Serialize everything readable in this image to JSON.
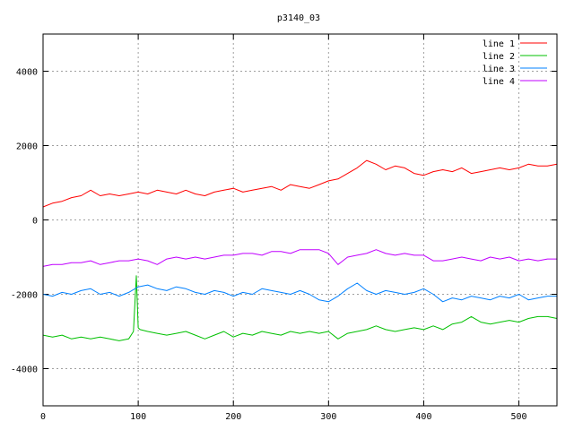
{
  "chart_data": {
    "type": "line",
    "title": "p3140_03",
    "xlabel": "",
    "ylabel": "",
    "xlim": [
      0,
      540
    ],
    "ylim": [
      -5000,
      5000
    ],
    "xticks": [
      0,
      100,
      200,
      300,
      400,
      500
    ],
    "yticks": [
      -4000,
      -2000,
      0,
      2000,
      4000
    ],
    "grid": true,
    "legend_position": "top-right",
    "colors": [
      "#ff0000",
      "#00c000",
      "#0080ff",
      "#c000ff"
    ],
    "series": [
      {
        "name": "line 1",
        "x": [
          0,
          10,
          20,
          30,
          40,
          50,
          60,
          70,
          80,
          90,
          100,
          110,
          120,
          130,
          140,
          150,
          160,
          170,
          180,
          190,
          200,
          210,
          220,
          230,
          240,
          250,
          260,
          270,
          280,
          290,
          300,
          310,
          320,
          330,
          340,
          350,
          360,
          370,
          380,
          390,
          400,
          410,
          420,
          430,
          440,
          450,
          460,
          470,
          480,
          490,
          500,
          510,
          520,
          530,
          540
        ],
        "y": [
          350,
          450,
          500,
          600,
          650,
          800,
          650,
          700,
          650,
          700,
          750,
          700,
          800,
          750,
          700,
          800,
          700,
          650,
          750,
          800,
          850,
          750,
          800,
          850,
          900,
          800,
          950,
          900,
          850,
          950,
          1050,
          1100,
          1250,
          1400,
          1600,
          1500,
          1350,
          1450,
          1400,
          1250,
          1200,
          1300,
          1350,
          1300,
          1400,
          1250,
          1300,
          1350,
          1400,
          1350,
          1400,
          1500,
          1450,
          1450,
          1500
        ]
      },
      {
        "name": "line 2",
        "x": [
          0,
          10,
          20,
          30,
          40,
          50,
          60,
          70,
          80,
          90,
          95,
          98,
          100,
          102,
          110,
          120,
          130,
          140,
          150,
          160,
          170,
          180,
          190,
          200,
          210,
          220,
          230,
          240,
          250,
          260,
          270,
          280,
          290,
          300,
          310,
          320,
          330,
          340,
          350,
          360,
          370,
          380,
          390,
          400,
          410,
          420,
          430,
          440,
          450,
          460,
          470,
          480,
          490,
          500,
          510,
          520,
          530,
          540
        ],
        "y": [
          -3100,
          -3150,
          -3100,
          -3200,
          -3150,
          -3200,
          -3150,
          -3200,
          -3250,
          -3200,
          -3000,
          -1500,
          -2900,
          -2950,
          -3000,
          -3050,
          -3100,
          -3050,
          -3000,
          -3100,
          -3200,
          -3100,
          -3000,
          -3150,
          -3050,
          -3100,
          -3000,
          -3050,
          -3100,
          -3000,
          -3050,
          -3000,
          -3050,
          -3000,
          -3200,
          -3050,
          -3000,
          -2950,
          -2850,
          -2950,
          -3000,
          -2950,
          -2900,
          -2950,
          -2850,
          -2950,
          -2800,
          -2750,
          -2600,
          -2750,
          -2800,
          -2750,
          -2700,
          -2750,
          -2650,
          -2600,
          -2600,
          -2650
        ]
      },
      {
        "name": "line 3",
        "x": [
          0,
          10,
          20,
          30,
          40,
          50,
          60,
          70,
          80,
          90,
          100,
          110,
          120,
          130,
          140,
          150,
          160,
          170,
          180,
          190,
          200,
          210,
          220,
          230,
          240,
          250,
          260,
          270,
          280,
          290,
          300,
          310,
          320,
          330,
          340,
          350,
          360,
          370,
          380,
          390,
          400,
          410,
          420,
          430,
          440,
          450,
          460,
          470,
          480,
          490,
          500,
          510,
          520,
          530,
          540
        ],
        "y": [
          -2000,
          -2050,
          -1950,
          -2000,
          -1900,
          -1850,
          -2000,
          -1950,
          -2050,
          -1950,
          -1800,
          -1750,
          -1850,
          -1900,
          -1800,
          -1850,
          -1950,
          -2000,
          -1900,
          -1950,
          -2050,
          -1950,
          -2000,
          -1850,
          -1900,
          -1950,
          -2000,
          -1900,
          -2000,
          -2150,
          -2200,
          -2050,
          -1850,
          -1700,
          -1900,
          -2000,
          -1900,
          -1950,
          -2000,
          -1950,
          -1850,
          -2000,
          -2200,
          -2100,
          -2150,
          -2050,
          -2100,
          -2150,
          -2050,
          -2100,
          -2000,
          -2150,
          -2100,
          -2050,
          -2050
        ]
      },
      {
        "name": "line 4",
        "x": [
          0,
          10,
          20,
          30,
          40,
          50,
          60,
          70,
          80,
          90,
          100,
          110,
          120,
          130,
          140,
          150,
          160,
          170,
          180,
          190,
          200,
          210,
          220,
          230,
          240,
          250,
          260,
          270,
          280,
          290,
          300,
          310,
          320,
          330,
          340,
          350,
          360,
          370,
          380,
          390,
          400,
          410,
          420,
          430,
          440,
          450,
          460,
          470,
          480,
          490,
          500,
          510,
          520,
          530,
          540
        ],
        "y": [
          -1250,
          -1200,
          -1200,
          -1150,
          -1150,
          -1100,
          -1200,
          -1150,
          -1100,
          -1100,
          -1050,
          -1100,
          -1200,
          -1050,
          -1000,
          -1050,
          -1000,
          -1050,
          -1000,
          -950,
          -950,
          -900,
          -900,
          -950,
          -850,
          -850,
          -900,
          -800,
          -800,
          -800,
          -900,
          -1200,
          -1000,
          -950,
          -900,
          -800,
          -900,
          -950,
          -900,
          -950,
          -950,
          -1100,
          -1100,
          -1050,
          -1000,
          -1050,
          -1100,
          -1000,
          -1050,
          -1000,
          -1100,
          -1050,
          -1100,
          -1050,
          -1050
        ]
      }
    ]
  }
}
